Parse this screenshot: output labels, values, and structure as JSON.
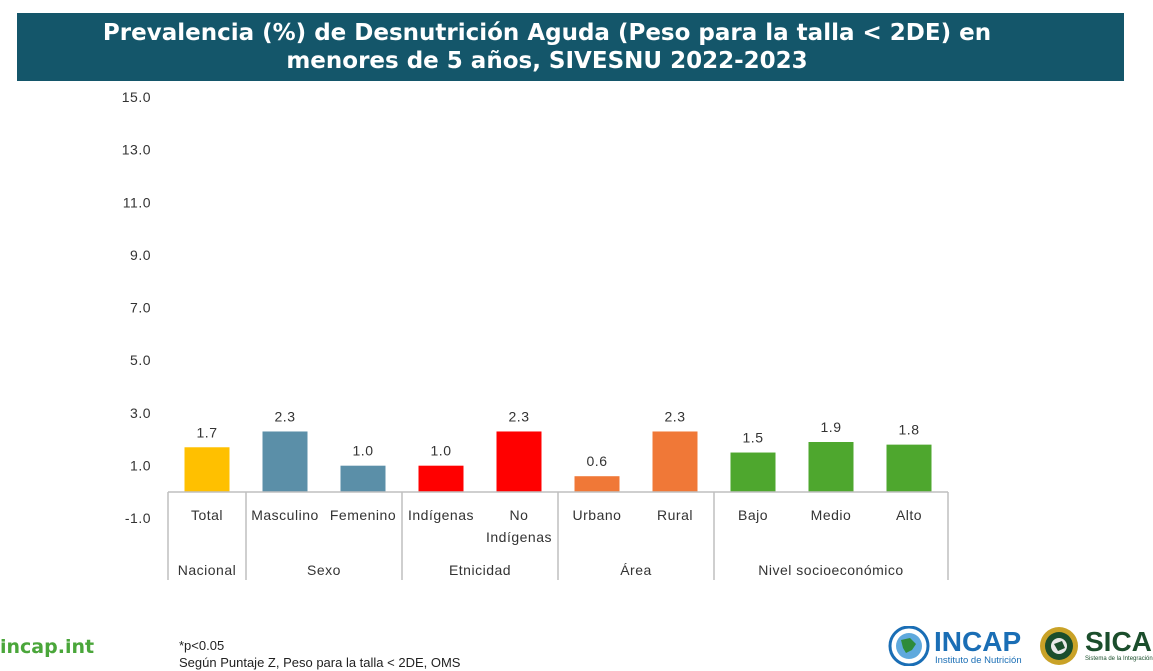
{
  "title": "Prevalencia (%) de Desnutrición Aguda (Peso para la talla < 2DE) en\nmenores de 5 años, SIVESNU 2022-2023",
  "chart_data": {
    "type": "bar",
    "title": "Prevalencia (%) de Desnutrición Aguda (Peso para la talla < 2DE) en menores de 5 años, SIVESNU 2022-2023",
    "ylim": [
      -1.0,
      15.0
    ],
    "yticks": [
      "15.0",
      "13.0",
      "11.0",
      "9.0",
      "7.0",
      "5.0",
      "3.0",
      "1.0",
      "-1.0"
    ],
    "ytick_values": [
      15,
      13,
      11,
      9,
      7,
      5,
      3,
      1,
      -1
    ],
    "grid": false,
    "categories": [
      "Total",
      "Masculino",
      "Femenino",
      "Indígenas",
      "No Indígenas",
      "Urbano",
      "Rural",
      "Bajo",
      "Medio",
      "Alto"
    ],
    "category_lines": [
      [
        "Total"
      ],
      [
        "Masculino"
      ],
      [
        "Femenino"
      ],
      [
        "Indígenas"
      ],
      [
        "No",
        "Indígenas"
      ],
      [
        "Urbano"
      ],
      [
        "Rural"
      ],
      [
        "Bajo"
      ],
      [
        "Medio"
      ],
      [
        "Alto"
      ]
    ],
    "values": [
      1.7,
      2.3,
      1.0,
      1.0,
      2.3,
      0.6,
      2.3,
      1.5,
      1.9,
      1.8
    ],
    "value_labels": [
      "1.7",
      "2.3",
      "1.0",
      "1.0",
      "2.3",
      "0.6",
      "2.3",
      "1.5",
      "1.9",
      "1.8"
    ],
    "colors": [
      "#ffc000",
      "#5b8fa8",
      "#5b8fa8",
      "#ff0000",
      "#ff0000",
      "#f07837",
      "#f07837",
      "#4ea72e",
      "#4ea72e",
      "#4ea72e"
    ],
    "groups": [
      {
        "label": "Nacional",
        "size": 1
      },
      {
        "label": "Sexo",
        "size": 2
      },
      {
        "label": "Etnicidad",
        "size": 2
      },
      {
        "label": "Área",
        "size": 2
      },
      {
        "label": "Nivel socioeconómico",
        "size": 3
      }
    ]
  },
  "footer": {
    "url": "incap.int",
    "note_line1": "*p<0.05",
    "note_line2": "Según Puntaje Z, Peso para la talla < 2DE, OMS"
  },
  "logos": {
    "incap_name": "INCAP",
    "incap_sub": "Instituto de Nutrición",
    "sica_name": "SICA",
    "sica_sub": "Sistema de la Integración"
  }
}
